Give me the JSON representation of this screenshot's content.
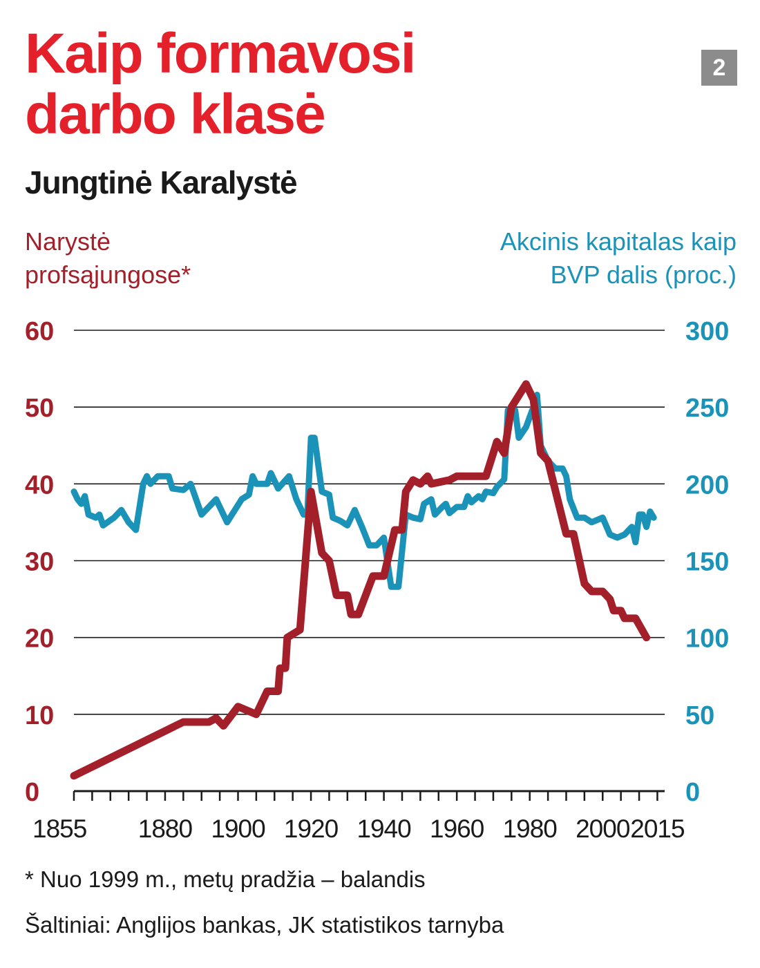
{
  "header": {
    "title_line1": "Kaip formavosi",
    "title_line2": "darbo klasė",
    "subtitle": "Jungtinė Karalystė",
    "badge": "2"
  },
  "colors": {
    "title": "#e4202a",
    "left_series": "#a3202a",
    "right_series": "#1b93b8",
    "badge_bg": "#8c8c8c"
  },
  "chart_data": {
    "type": "line",
    "title": "Kaip formavosi darbo klasė",
    "subtitle": "Jungtinė Karalystė",
    "x_ticks": [
      1855,
      1880,
      1900,
      1920,
      1940,
      1960,
      1980,
      2000,
      2015
    ],
    "xlim": [
      1855,
      2017
    ],
    "grid": "horizontal",
    "y_left": {
      "label_line1": "Narystė",
      "label_line2": "profsąjungose*",
      "ticks": [
        0,
        10,
        20,
        30,
        40,
        50,
        60
      ],
      "ylim": [
        0,
        60
      ]
    },
    "y_right": {
      "label_line1": "Akcinis kapitalas kaip",
      "label_line2": "BVP dalis (proc.)",
      "ticks": [
        0,
        50,
        100,
        150,
        200,
        250,
        300
      ],
      "ylim": [
        0,
        300
      ]
    },
    "series": [
      {
        "axis": "left",
        "color": "#a3202a",
        "points": [
          [
            1855,
            2
          ],
          [
            1885,
            9
          ],
          [
            1892,
            9
          ],
          [
            1894,
            9.5
          ],
          [
            1896,
            8.5
          ],
          [
            1900,
            11
          ],
          [
            1905,
            10
          ],
          [
            1908,
            13
          ],
          [
            1911,
            13
          ],
          [
            1911.5,
            16
          ],
          [
            1913,
            16
          ],
          [
            1913.5,
            20
          ],
          [
            1917,
            21
          ],
          [
            1920,
            39
          ],
          [
            1923,
            31
          ],
          [
            1925,
            30
          ],
          [
            1927,
            25.5
          ],
          [
            1930,
            25.5
          ],
          [
            1931,
            23
          ],
          [
            1933,
            23
          ],
          [
            1937,
            28
          ],
          [
            1940,
            28
          ],
          [
            1943,
            34
          ],
          [
            1945,
            34
          ],
          [
            1946,
            39
          ],
          [
            1948,
            40.5
          ],
          [
            1950,
            40
          ],
          [
            1952,
            41
          ],
          [
            1953,
            40
          ],
          [
            1958,
            40.5
          ],
          [
            1960,
            41
          ],
          [
            1968,
            41
          ],
          [
            1971,
            45.5
          ],
          [
            1973,
            44
          ],
          [
            1975,
            50
          ],
          [
            1979,
            53
          ],
          [
            1981,
            51
          ],
          [
            1983,
            44
          ],
          [
            1985,
            43
          ],
          [
            1990,
            33.5
          ],
          [
            1992,
            33.5
          ],
          [
            1995,
            27
          ],
          [
            1997,
            26
          ],
          [
            2000,
            26
          ],
          [
            2002,
            25
          ],
          [
            2003,
            23.5
          ],
          [
            2005,
            23.5
          ],
          [
            2006,
            22.5
          ],
          [
            2009,
            22.5
          ],
          [
            2012,
            20
          ]
        ]
      },
      {
        "axis": "right",
        "color": "#1b93b8",
        "points": [
          [
            1855,
            195
          ],
          [
            1856,
            190
          ],
          [
            1857,
            187
          ],
          [
            1858,
            192
          ],
          [
            1859,
            180
          ],
          [
            1861,
            178
          ],
          [
            1862,
            180
          ],
          [
            1863,
            173
          ],
          [
            1866,
            178
          ],
          [
            1868,
            183
          ],
          [
            1870,
            175
          ],
          [
            1872,
            170
          ],
          [
            1874,
            200
          ],
          [
            1875,
            205
          ],
          [
            1876,
            200
          ],
          [
            1878,
            205
          ],
          [
            1881,
            205
          ],
          [
            1882,
            197
          ],
          [
            1885,
            196
          ],
          [
            1887,
            200
          ],
          [
            1890,
            180
          ],
          [
            1894,
            190
          ],
          [
            1897,
            175
          ],
          [
            1901,
            190
          ],
          [
            1903,
            193
          ],
          [
            1904,
            205
          ],
          [
            1905,
            200
          ],
          [
            1908,
            200
          ],
          [
            1909,
            207
          ],
          [
            1911,
            197
          ],
          [
            1914,
            205
          ],
          [
            1916,
            190
          ],
          [
            1918,
            180
          ],
          [
            1919,
            180
          ],
          [
            1920,
            230
          ],
          [
            1921,
            230
          ],
          [
            1923,
            195
          ],
          [
            1925,
            193
          ],
          [
            1926,
            178
          ],
          [
            1928,
            176
          ],
          [
            1930,
            173
          ],
          [
            1932,
            183
          ],
          [
            1934,
            172
          ],
          [
            1936,
            160
          ],
          [
            1938,
            160
          ],
          [
            1940,
            165
          ],
          [
            1942,
            133
          ],
          [
            1944,
            133
          ],
          [
            1946,
            180
          ],
          [
            1948,
            178
          ],
          [
            1950,
            177
          ],
          [
            1951,
            187
          ],
          [
            1953,
            190
          ],
          [
            1954,
            180
          ],
          [
            1956,
            185
          ],
          [
            1957,
            187
          ],
          [
            1958,
            181
          ],
          [
            1960,
            185
          ],
          [
            1962,
            185
          ],
          [
            1963,
            192
          ],
          [
            1964,
            188
          ],
          [
            1966,
            192
          ],
          [
            1967,
            190
          ],
          [
            1968,
            195
          ],
          [
            1970,
            194
          ],
          [
            1971,
            198
          ],
          [
            1973,
            203
          ],
          [
            1974,
            248
          ],
          [
            1976,
            248
          ],
          [
            1977,
            230
          ],
          [
            1979,
            237
          ],
          [
            1981,
            250
          ],
          [
            1982,
            258
          ],
          [
            1983,
            225
          ],
          [
            1985,
            215
          ],
          [
            1987,
            210
          ],
          [
            1989,
            210
          ],
          [
            1990,
            205
          ],
          [
            1991,
            190
          ],
          [
            1993,
            178
          ],
          [
            1995,
            178
          ],
          [
            1997,
            175
          ],
          [
            2000,
            178
          ],
          [
            2002,
            167
          ],
          [
            2004,
            165
          ],
          [
            2006,
            167
          ],
          [
            2008,
            172
          ],
          [
            2009,
            162
          ],
          [
            2010,
            180
          ],
          [
            2011,
            180
          ],
          [
            2012,
            172
          ],
          [
            2013,
            182
          ],
          [
            2014,
            178
          ]
        ]
      }
    ]
  },
  "notes": {
    "footnote": "* Nuo 1999 m., metų pradžia – balandis",
    "source": "Šaltiniai: Anglijos bankas, JK statistikos tarnyba"
  }
}
